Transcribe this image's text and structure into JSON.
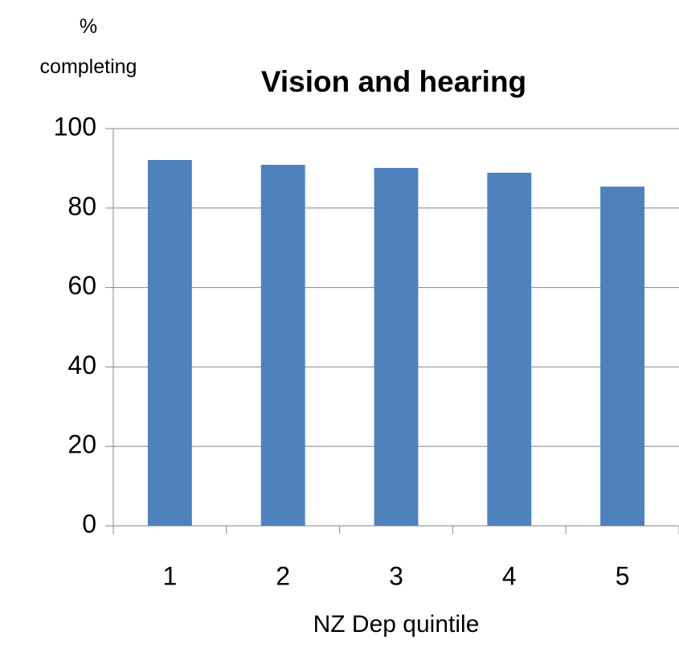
{
  "chart_data": {
    "type": "bar",
    "title": "Vision and hearing",
    "y_label": "% completing",
    "x_label": "NZ Dep quintile",
    "categories": [
      "1",
      "2",
      "3",
      "4",
      "5"
    ],
    "values": [
      92.1,
      90.9,
      90.1,
      88.9,
      85.4
    ],
    "color": "#4f81bd",
    "ylim": [
      0,
      100
    ],
    "yticks": [
      0,
      20,
      40,
      60,
      80,
      100
    ],
    "grid": true
  }
}
